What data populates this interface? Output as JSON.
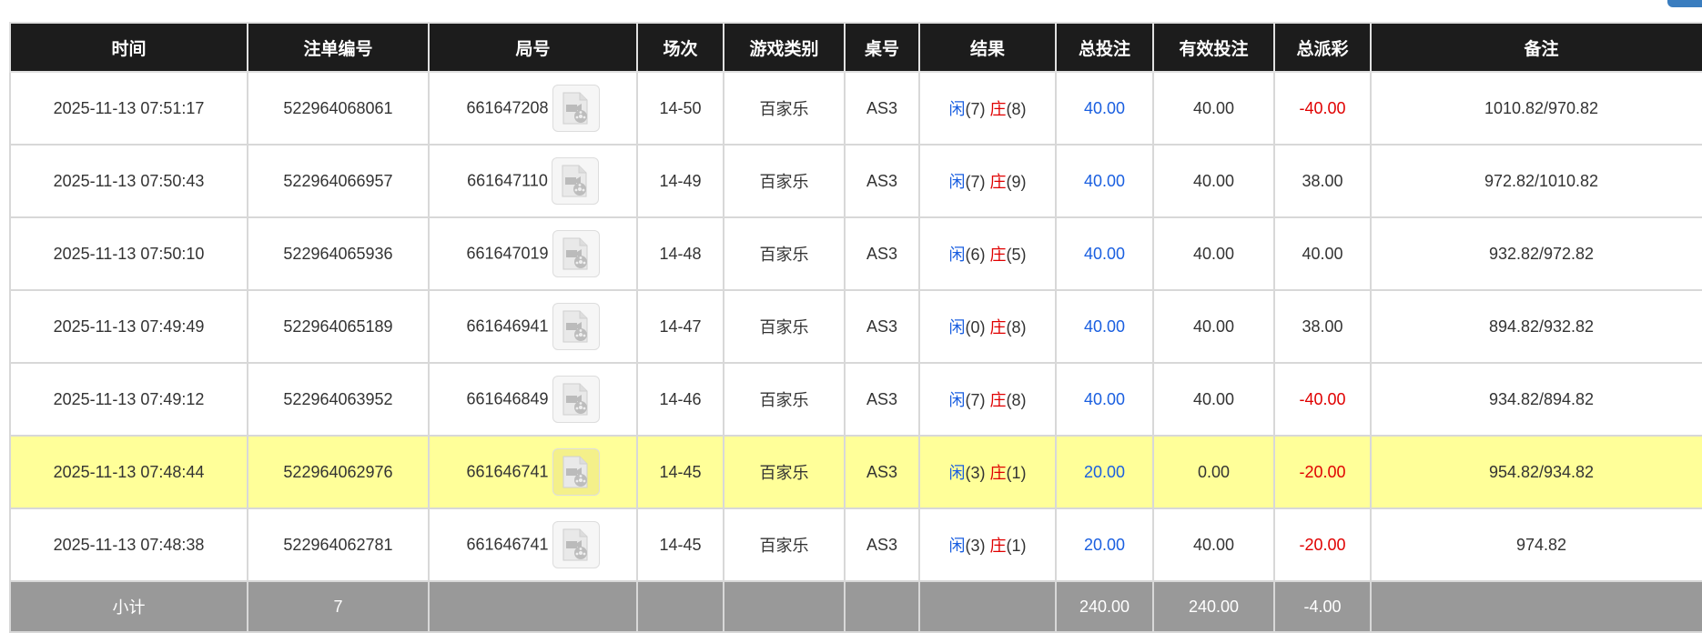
{
  "headers": [
    "时间",
    "注单编号",
    "局号",
    "场次",
    "游戏类别",
    "桌号",
    "结果",
    "总投注",
    "有效投注",
    "总派彩",
    "备注"
  ],
  "player_label": "闲",
  "banker_label": "庄",
  "rows": [
    {
      "time": "2025-11-13 07:51:17",
      "bet_id": "522964068061",
      "round": "661647208",
      "session": "14-50",
      "game": "百家乐",
      "table": "AS3",
      "player": "(7)",
      "banker": "(8)",
      "total_bet": "40.00",
      "valid_bet": "40.00",
      "payout": "-40.00",
      "payout_neg": true,
      "note": "1010.82/970.82"
    },
    {
      "time": "2025-11-13 07:50:43",
      "bet_id": "522964066957",
      "round": "661647110",
      "session": "14-49",
      "game": "百家乐",
      "table": "AS3",
      "player": "(7)",
      "banker": "(9)",
      "total_bet": "40.00",
      "valid_bet": "40.00",
      "payout": "38.00",
      "payout_neg": false,
      "note": "972.82/1010.82"
    },
    {
      "time": "2025-11-13 07:50:10",
      "bet_id": "522964065936",
      "round": "661647019",
      "session": "14-48",
      "game": "百家乐",
      "table": "AS3",
      "player": "(6)",
      "banker": "(5)",
      "total_bet": "40.00",
      "valid_bet": "40.00",
      "payout": "40.00",
      "payout_neg": false,
      "note": "932.82/972.82"
    },
    {
      "time": "2025-11-13 07:49:49",
      "bet_id": "522964065189",
      "round": "661646941",
      "session": "14-47",
      "game": "百家乐",
      "table": "AS3",
      "player": "(0)",
      "banker": "(8)",
      "total_bet": "40.00",
      "valid_bet": "40.00",
      "payout": "38.00",
      "payout_neg": false,
      "note": "894.82/932.82"
    },
    {
      "time": "2025-11-13 07:49:12",
      "bet_id": "522964063952",
      "round": "661646849",
      "session": "14-46",
      "game": "百家乐",
      "table": "AS3",
      "player": "(7)",
      "banker": "(8)",
      "total_bet": "40.00",
      "valid_bet": "40.00",
      "payout": "-40.00",
      "payout_neg": true,
      "note": "934.82/894.82"
    },
    {
      "time": "2025-11-13 07:48:44",
      "bet_id": "522964062976",
      "round": "661646741",
      "session": "14-45",
      "game": "百家乐",
      "table": "AS3",
      "player": "(3)",
      "banker": "(1)",
      "total_bet": "20.00",
      "valid_bet": "0.00",
      "payout": "-20.00",
      "payout_neg": true,
      "note": "954.82/934.82",
      "highlight": true
    },
    {
      "time": "2025-11-13 07:48:38",
      "bet_id": "522964062781",
      "round": "661646741",
      "session": "14-45",
      "game": "百家乐",
      "table": "AS3",
      "player": "(3)",
      "banker": "(1)",
      "total_bet": "20.00",
      "valid_bet": "40.00",
      "payout": "-20.00",
      "payout_neg": true,
      "note": "974.82"
    }
  ],
  "subtotal": {
    "label": "小计",
    "count": "7",
    "total_bet": "240.00",
    "valid_bet": "240.00",
    "payout": "-4.00"
  },
  "colors": {
    "header_bg": "#1c1c1c",
    "highlight": "#ffff99",
    "subtotal_bg": "#999999",
    "blue": "#1a5fe0",
    "red": "#e00000"
  },
  "icons": {
    "round_video": "video-file-icon"
  }
}
